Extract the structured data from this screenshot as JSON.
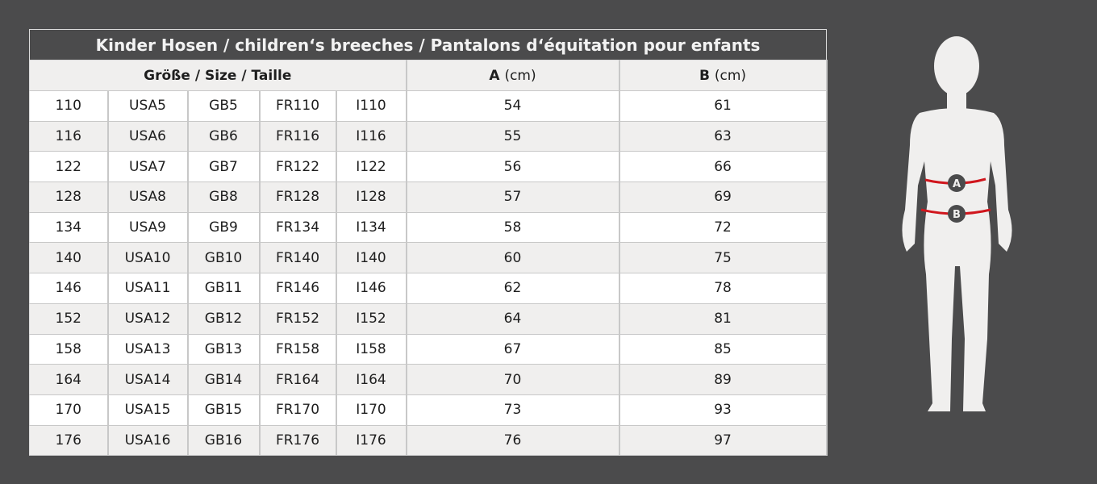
{
  "title": "Kinder Hosen / children‘s breeches /  Pantalons d‘équitation pour enfants",
  "headers": {
    "size": "Größe / Size / Taille",
    "a": "A",
    "a_unit": "(cm)",
    "b": "B",
    "b_unit": "(cm)"
  },
  "rows": [
    [
      "110",
      "USA5",
      "GB5",
      "FR110",
      "I110",
      "54",
      "61"
    ],
    [
      "116",
      "USA6",
      "GB6",
      "FR116",
      "I116",
      "55",
      "63"
    ],
    [
      "122",
      "USA7",
      "GB7",
      "FR122",
      "I122",
      "56",
      "66"
    ],
    [
      "128",
      "USA8",
      "GB8",
      "FR128",
      "I128",
      "57",
      "69"
    ],
    [
      "134",
      "USA9",
      "GB9",
      "FR134",
      "I134",
      "58",
      "72"
    ],
    [
      "140",
      "USA10",
      "GB10",
      "FR140",
      "I140",
      "60",
      "75"
    ],
    [
      "146",
      "USA11",
      "GB11",
      "FR146",
      "I146",
      "62",
      "78"
    ],
    [
      "152",
      "USA12",
      "GB12",
      "FR152",
      "I152",
      "64",
      "81"
    ],
    [
      "158",
      "USA13",
      "GB13",
      "FR158",
      "I158",
      "67",
      "85"
    ],
    [
      "164",
      "USA14",
      "GB14",
      "FR164",
      "I164",
      "70",
      "89"
    ],
    [
      "170",
      "USA15",
      "GB15",
      "FR170",
      "I170",
      "73",
      "93"
    ],
    [
      "176",
      "USA16",
      "GB16",
      "FR176",
      "I176",
      "76",
      "97"
    ]
  ],
  "figure": {
    "marker_a": "A",
    "marker_b": "B",
    "line_color": "#d0161d"
  }
}
